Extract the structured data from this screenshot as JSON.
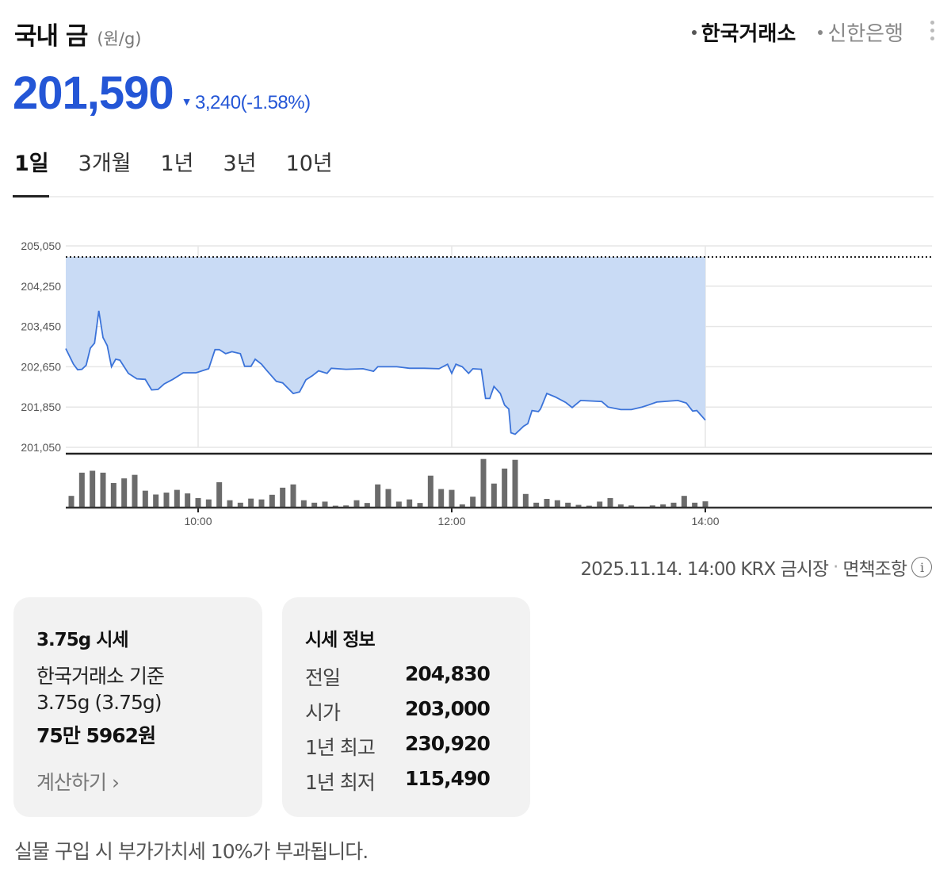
{
  "header": {
    "title": "국내 금",
    "unit": "(원/g)",
    "price": "201,590",
    "change_direction": "down",
    "change_amount": "3,240",
    "change_percent": "(-1.58%)",
    "price_color": "#2456d6",
    "sources": [
      {
        "label": "한국거래소",
        "active": true
      },
      {
        "label": "신한은행",
        "active": false
      }
    ],
    "more_icon": "vertical-ellipsis-icon"
  },
  "tabs": [
    {
      "label": "1일",
      "active": true
    },
    {
      "label": "3개월",
      "active": false
    },
    {
      "label": "1년",
      "active": false
    },
    {
      "label": "3년",
      "active": false
    },
    {
      "label": "10년",
      "active": false
    }
  ],
  "chart_data": {
    "type": "area",
    "ytick_labels": [
      "205,050",
      "204,250",
      "203,450",
      "202,650",
      "201,850",
      "201,050"
    ],
    "yticks": [
      205050,
      204250,
      203450,
      202650,
      201850,
      201050
    ],
    "ylim": [
      201050,
      205050
    ],
    "xtick_labels": [
      "10:00",
      "12:00",
      "14:00"
    ],
    "xlim": [
      "09:00",
      "15:45"
    ],
    "reference_line": {
      "value": 204830,
      "style": "dotted"
    },
    "line_color": "#3b73d9",
    "fill_color": "#c9dbf5",
    "grid": true,
    "price_series": {
      "x": [
        "09:00",
        "09:01",
        "09:03",
        "09:05",
        "09:07",
        "09:09",
        "09:11",
        "09:13",
        "09:15",
        "09:17",
        "09:19",
        "09:21",
        "09:23",
        "09:27",
        "09:31",
        "09:35",
        "09:38",
        "09:41",
        "09:44",
        "09:48",
        "09:53",
        "09:59",
        "10:05",
        "10:08",
        "10:10",
        "10:13",
        "10:16",
        "10:20",
        "10:22",
        "10:25",
        "10:27",
        "10:30",
        "10:32",
        "10:37",
        "10:40",
        "10:45",
        "10:48",
        "10:51",
        "10:54",
        "10:57",
        "11:01",
        "11:03",
        "11:10",
        "11:18",
        "11:23",
        "11:25",
        "11:34",
        "11:40",
        "11:47",
        "11:54",
        "11:58",
        "12:00",
        "12:02",
        "12:05",
        "12:08",
        "12:10",
        "12:14",
        "12:16",
        "12:18",
        "12:20",
        "12:23",
        "12:25",
        "12:27",
        "12:28",
        "12:30",
        "12:34",
        "12:36",
        "12:38",
        "12:41",
        "12:42",
        "12:45",
        "12:49",
        "12:54",
        "12:57",
        "13:01",
        "13:11",
        "13:14",
        "13:20",
        "13:25",
        "13:30",
        "13:33",
        "13:37",
        "13:47",
        "13:51",
        "13:54",
        "13:56",
        "14:00"
      ],
      "y": [
        203010,
        202700,
        202590,
        202600,
        202680,
        203020,
        203120,
        203760,
        203230,
        203070,
        202650,
        202800,
        202780,
        202520,
        202410,
        202400,
        202190,
        202200,
        202310,
        202400,
        202530,
        202530,
        202610,
        202990,
        202990,
        202910,
        202950,
        202910,
        202660,
        202660,
        202800,
        202700,
        202600,
        202360,
        202330,
        202120,
        202150,
        202390,
        202470,
        202570,
        202520,
        202620,
        202600,
        202610,
        202560,
        202650,
        202650,
        202620,
        202620,
        202610,
        202700,
        202520,
        202700,
        202650,
        202520,
        202610,
        202600,
        202020,
        202020,
        202260,
        202120,
        201890,
        201810,
        201340,
        201310,
        201470,
        201520,
        201780,
        201760,
        201810,
        202120,
        202050,
        201940,
        201840,
        201980,
        201960,
        201850,
        201800,
        201800,
        201850,
        201890,
        201950,
        201980,
        201930,
        201770,
        201780,
        201590
      ]
    },
    "volume_series": {
      "start": "09:00",
      "interval_minutes": 5,
      "values": [
        43,
        128,
        135,
        128,
        90,
        107,
        120,
        62,
        48,
        55,
        65,
        52,
        35,
        30,
        93,
        27,
        18,
        33,
        30,
        47,
        73,
        85,
        27,
        18,
        22,
        7,
        8,
        27,
        17,
        85,
        68,
        22,
        30,
        17,
        117,
        68,
        65,
        12,
        40,
        178,
        88,
        143,
        175,
        50,
        18,
        32,
        27,
        18,
        10,
        7,
        22,
        35,
        12,
        8,
        3,
        8,
        12,
        18,
        43,
        18,
        23
      ],
      "ylim": [
        0,
        180
      ],
      "bar_color": "#6b6b6b"
    }
  },
  "footer": {
    "timestamp": "2025.11.14. 14:00 KRX 금시장",
    "separator": "·",
    "disclaimer_link": "면책조항",
    "info_icon": "i"
  },
  "card_weight": {
    "title": "3.75g 시세",
    "basis": "한국거래소 기준",
    "weight": "3.75g (3.75g)",
    "amount": "75만 5962원",
    "calc_link": "계산하기 ›"
  },
  "card_info": {
    "title": "시세 정보",
    "rows": [
      {
        "label": "전일",
        "value": "204,830"
      },
      {
        "label": "시가",
        "value": "203,000"
      },
      {
        "label": "1년 최고",
        "value": "230,920"
      },
      {
        "label": "1년 최저",
        "value": "115,490"
      }
    ]
  },
  "note": "실물 구입 시 부가가치세 10%가 부과됩니다."
}
